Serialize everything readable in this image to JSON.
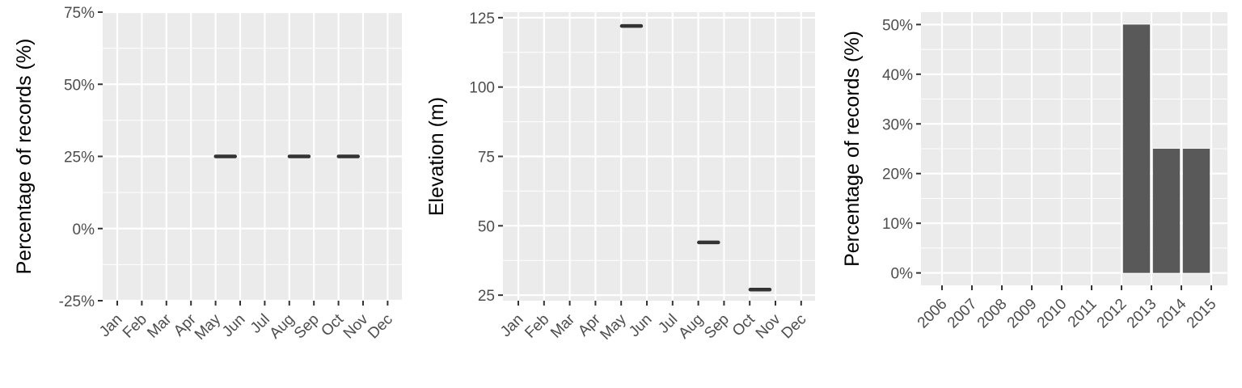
{
  "chart_data": [
    {
      "type": "line",
      "ylabel": "Percentage of records (%)",
      "xlabel": "",
      "categories": [
        "Jan",
        "Feb",
        "Mar",
        "Apr",
        "May",
        "Jun",
        "Jul",
        "Aug",
        "Sep",
        "Oct",
        "Nov",
        "Dec"
      ],
      "y_ticks": [
        -25,
        0,
        25,
        50,
        75
      ],
      "y_tick_labels": [
        "-25%",
        "0%",
        "25%",
        "50%",
        "75%"
      ],
      "ylim": [
        -25,
        75
      ],
      "grid": true,
      "series": [
        {
          "points": [
            {
              "month": "May",
              "value": 25
            },
            {
              "month": "Aug",
              "value": 25
            },
            {
              "month": "Oct",
              "value": 25
            }
          ]
        }
      ]
    },
    {
      "type": "line",
      "ylabel": "Elevation (m)",
      "xlabel": "",
      "categories": [
        "Jan",
        "Feb",
        "Mar",
        "Apr",
        "May",
        "Jun",
        "Jul",
        "Aug",
        "Sep",
        "Oct",
        "Nov",
        "Dec"
      ],
      "y_ticks": [
        25,
        50,
        75,
        100,
        125
      ],
      "y_tick_labels": [
        "25",
        "50",
        "75",
        "100",
        "125"
      ],
      "ylim": [
        23,
        127
      ],
      "grid": true,
      "series": [
        {
          "points": [
            {
              "month": "May",
              "value": 122
            },
            {
              "month": "Aug",
              "value": 44
            },
            {
              "month": "Oct",
              "value": 27
            }
          ]
        }
      ]
    },
    {
      "type": "bar",
      "ylabel": "Percentage of records (%)",
      "xlabel": "",
      "categories": [
        "2006",
        "2007",
        "2008",
        "2009",
        "2010",
        "2011",
        "2012",
        "2013",
        "2014",
        "2015"
      ],
      "values": [
        0,
        0,
        0,
        0,
        0,
        0,
        50,
        25,
        25,
        0
      ],
      "y_ticks": [
        0,
        10,
        20,
        30,
        40,
        50
      ],
      "y_tick_labels": [
        "0%",
        "10%",
        "20%",
        "30%",
        "40%",
        "50%"
      ],
      "ylim": [
        -2.5,
        52.5
      ],
      "grid": true,
      "bar_color": "#595959"
    }
  ],
  "colors": {
    "panel_background": "#ebebeb",
    "grid": "#ffffff",
    "mark": "#333333",
    "tick": "#333333",
    "tick_label": "#4d4d4d"
  }
}
